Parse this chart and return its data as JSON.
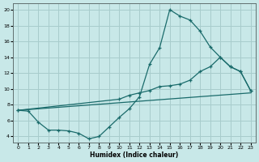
{
  "xlabel": "Humidex (Indice chaleur)",
  "background_color": "#c8e8e8",
  "grid_color": "#a8cccc",
  "line_color": "#1a6b6b",
  "xlim": [
    -0.5,
    23.5
  ],
  "ylim": [
    3.2,
    20.8
  ],
  "yticks": [
    4,
    6,
    8,
    10,
    12,
    14,
    16,
    18,
    20
  ],
  "xticks": [
    0,
    1,
    2,
    3,
    4,
    5,
    6,
    7,
    8,
    9,
    10,
    11,
    12,
    13,
    14,
    15,
    16,
    17,
    18,
    19,
    20,
    21,
    22,
    23
  ],
  "curve1_x": [
    0,
    1,
    2,
    3,
    4,
    5,
    6,
    7,
    8,
    9,
    10,
    11,
    12,
    13,
    14,
    15,
    16,
    17,
    18,
    19,
    20,
    21,
    22,
    23
  ],
  "curve1_y": [
    7.3,
    7.2,
    5.8,
    4.8,
    4.8,
    4.7,
    4.4,
    3.7,
    4.0,
    5.2,
    6.4,
    7.5,
    9.0,
    13.1,
    15.2,
    20.0,
    19.2,
    18.7,
    17.3,
    15.3,
    14.0,
    12.8,
    12.2,
    9.8
  ],
  "curve2_x": [
    0,
    10,
    11,
    12,
    13,
    14,
    15,
    16,
    17,
    18,
    19,
    20,
    21,
    22,
    23
  ],
  "curve2_y": [
    7.3,
    8.7,
    9.2,
    9.5,
    9.8,
    10.3,
    10.4,
    10.6,
    11.1,
    12.2,
    12.8,
    14.0,
    12.8,
    12.2,
    9.8
  ],
  "curve3_x": [
    0,
    23
  ],
  "curve3_y": [
    7.3,
    9.5
  ]
}
